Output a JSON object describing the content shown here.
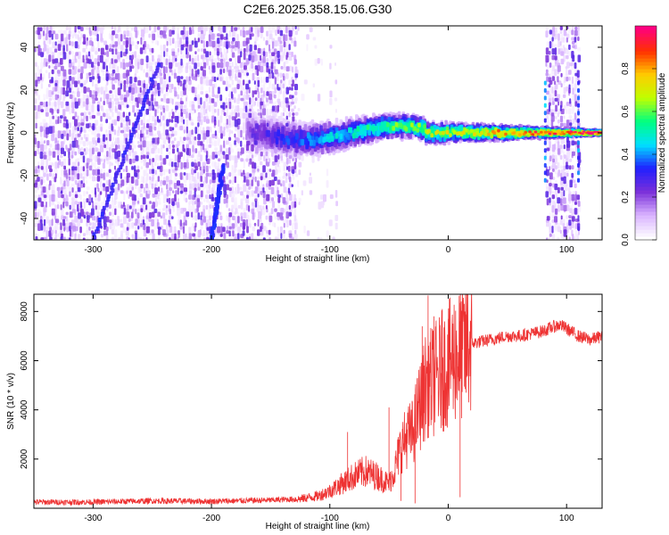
{
  "title": "C2E6.2025.358.15.06.G30",
  "chart_data": [
    {
      "type": "heatmap",
      "title": "C2E6.2025.358.15.06.G30",
      "xlabel": "Height of straight line (km)",
      "ylabel": "Frequency (Hz)",
      "xlim": [
        -350,
        130
      ],
      "ylim": [
        -50,
        50
      ],
      "xticks": [
        -300,
        -200,
        -100,
        0,
        100
      ],
      "yticks": [
        -40,
        -20,
        0,
        20,
        40
      ],
      "colorbar": {
        "label": "Normalized spectral amplitude",
        "range": [
          0.0,
          1.0
        ],
        "ticks": [
          0.0,
          0.2,
          0.4,
          0.6,
          0.8
        ],
        "tick_labels": [
          "0.0",
          "0.2",
          "0.4",
          "0.6",
          "0.8"
        ],
        "colormap": "rainbow",
        "stops": [
          "#ffffff",
          "#d9b3ff",
          "#7a30d9",
          "#2020ff",
          "#00e0ff",
          "#00ff80",
          "#c0ff00",
          "#ffcc00",
          "#ff3000",
          "#ff0080"
        ]
      },
      "features": [
        {
          "name": "noise-region",
          "x_range": [
            -350,
            -130
          ],
          "y_range": [
            -50,
            50
          ],
          "amplitude": 0.1
        },
        {
          "name": "scattered-noise",
          "x_range": [
            -130,
            -95
          ],
          "y_range": [
            -50,
            50
          ],
          "amplitude": 0.03
        },
        {
          "name": "signal-ridge",
          "x_range": [
            -170,
            130
          ],
          "y_center": 0,
          "amplitude_start": 0.2,
          "amplitude_end": 1.0
        },
        {
          "name": "streak-1",
          "x_range": [
            -300,
            -245
          ],
          "y_range": [
            -50,
            32
          ]
        },
        {
          "name": "streak-2",
          "x_range": [
            -200,
            -190
          ],
          "y_range": [
            -50,
            -15
          ]
        },
        {
          "name": "noise-band-right",
          "x_range": [
            82,
            110
          ],
          "y_range": [
            -50,
            50
          ],
          "amplitude": 0.1
        }
      ]
    },
    {
      "type": "line",
      "xlabel": "Height of straight line (km)",
      "ylabel": "SNR (10 * v/v)",
      "xlim": [
        -350,
        130
      ],
      "ylim": [
        0,
        8700
      ],
      "xticks": [
        -300,
        -200,
        -100,
        0,
        100
      ],
      "yticks": [
        2000,
        4000,
        6000,
        8000
      ],
      "color": "#ee3333",
      "series": [
        {
          "name": "SNR",
          "x": [
            -350,
            -300,
            -250,
            -200,
            -150,
            -125,
            -110,
            -100,
            -90,
            -80,
            -70,
            -60,
            -50,
            -45,
            -40,
            -35,
            -30,
            -25,
            -20,
            -18,
            -15,
            -10,
            -5,
            0,
            5,
            10,
            15,
            20,
            30,
            40,
            50,
            60,
            70,
            80,
            90,
            95,
            100,
            110,
            120,
            130
          ],
          "y": [
            250,
            250,
            300,
            280,
            330,
            380,
            500,
            700,
            1000,
            1300,
            1500,
            1300,
            1000,
            1600,
            2500,
            2900,
            3100,
            4000,
            4800,
            5200,
            5100,
            5300,
            5600,
            5800,
            6200,
            6300,
            6500,
            6700,
            6800,
            6900,
            7000,
            7000,
            7100,
            7200,
            7400,
            7450,
            7300,
            7000,
            6850,
            7000
          ]
        }
      ],
      "spikes": [
        {
          "x": -17,
          "y": 8650
        },
        {
          "x": -22,
          "y": 7400
        },
        {
          "x": -12,
          "y": 7800
        },
        {
          "x": -5,
          "y": 8100
        },
        {
          "x": 0,
          "y": 7700
        },
        {
          "x": 10,
          "y": 8350
        },
        {
          "x": 10,
          "y": 450
        },
        {
          "x": -50,
          "y": 4100
        },
        {
          "x": -85,
          "y": 3100
        },
        {
          "x": -28,
          "y": 200
        },
        {
          "x": -40,
          "y": 300
        }
      ]
    }
  ]
}
